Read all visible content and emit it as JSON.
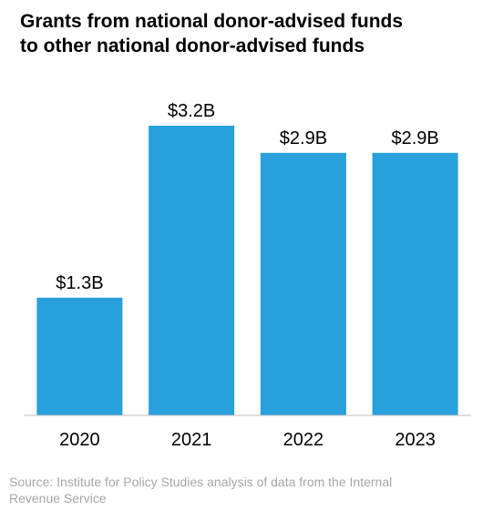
{
  "chart_data": {
    "type": "bar",
    "title_lines": [
      "Grants from national donor-advised funds",
      "to other national donor-advised funds"
    ],
    "categories": [
      "2020",
      "2021",
      "2022",
      "2023"
    ],
    "values": [
      1.3,
      3.2,
      2.9,
      2.9
    ],
    "data_labels": [
      "$1.3B",
      "$3.2B",
      "$2.9B",
      "$2.9B"
    ],
    "unit": "billions of dollars",
    "ylim": [
      0,
      3.2
    ],
    "xlabel": "",
    "ylabel": "",
    "grid": false,
    "legend": "none",
    "bar_color": "#27a0dc",
    "axis_color": "#bfbfbf"
  },
  "source_text": "Source: Institute for Policy Studies analysis of data from the Internal Revenue Service"
}
